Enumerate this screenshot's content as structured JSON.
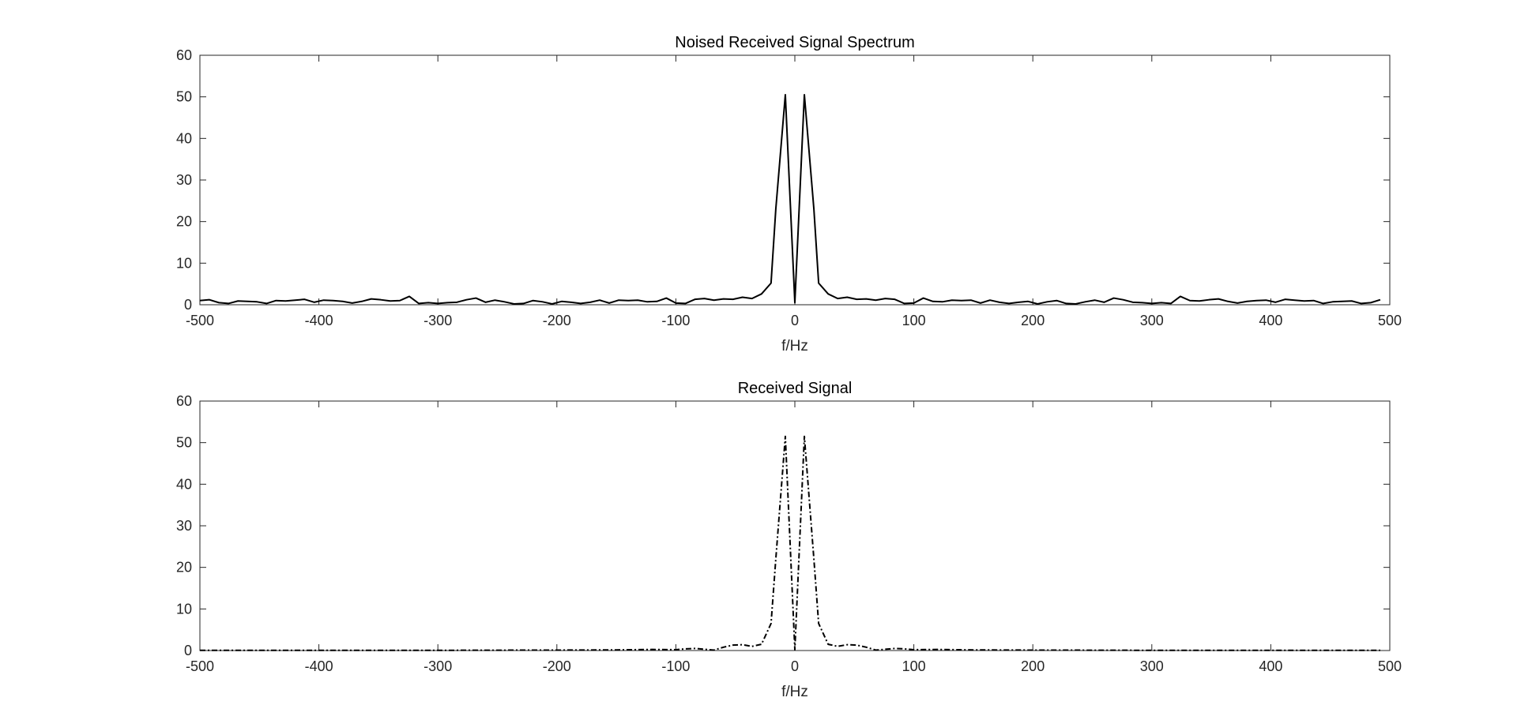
{
  "figure": {
    "background": "#ffffff",
    "axes_color": "#262626",
    "line_color": "#000000"
  },
  "chart_data": [
    {
      "type": "line",
      "title": "Noised Received Signal Spectrum",
      "xlabel": "f/Hz",
      "ylabel": "",
      "xlim": [
        -500,
        500
      ],
      "ylim": [
        0,
        60
      ],
      "xticks": [
        -500,
        -400,
        -300,
        -200,
        -100,
        0,
        100,
        200,
        300,
        400,
        500
      ],
      "yticks": [
        0,
        10,
        20,
        30,
        40,
        50,
        60
      ],
      "xtick_labels": [
        "-500",
        "-400",
        "-300",
        "-200",
        "-100",
        "0",
        "100",
        "200",
        "300",
        "400",
        "500"
      ],
      "ytick_labels": [
        "0",
        "10",
        "20",
        "30",
        "40",
        "50",
        "60"
      ],
      "grid": false,
      "series": [
        {
          "line_style": "solid",
          "x": [
            -500,
            -492,
            -484,
            -476,
            -468,
            -460,
            -452,
            -444,
            -436,
            -428,
            -420,
            -412,
            -404,
            -396,
            -388,
            -380,
            -372,
            -364,
            -356,
            -348,
            -340,
            -332,
            -324,
            -316,
            -308,
            -300,
            -292,
            -284,
            -276,
            -268,
            -260,
            -252,
            -244,
            -236,
            -228,
            -220,
            -212,
            -204,
            -196,
            -188,
            -180,
            -172,
            -164,
            -156,
            -148,
            -140,
            -132,
            -124,
            -116,
            -108,
            -100,
            -92,
            -84,
            -76,
            -68,
            -60,
            -52,
            -44,
            -36,
            -28,
            -20,
            -16,
            -8,
            0,
            8,
            16,
            20,
            28,
            36,
            44,
            52,
            60,
            68,
            76,
            84,
            92,
            100,
            108,
            116,
            124,
            132,
            140,
            148,
            156,
            164,
            172,
            180,
            188,
            196,
            204,
            212,
            220,
            228,
            236,
            244,
            252,
            260,
            268,
            276,
            284,
            292,
            300,
            308,
            316,
            324,
            332,
            340,
            348,
            356,
            364,
            372,
            380,
            388,
            396,
            404,
            412,
            420,
            428,
            436,
            444,
            452,
            460,
            468,
            476,
            484,
            492
          ],
          "y": [
            1.0,
            1.2,
            0.5,
            0.3,
            0.9,
            0.8,
            0.7,
            0.3,
            1.0,
            0.9,
            1.1,
            1.3,
            0.6,
            1.1,
            1.0,
            0.8,
            0.4,
            0.8,
            1.4,
            1.2,
            0.9,
            1.0,
            2.0,
            0.3,
            0.5,
            0.3,
            0.5,
            0.6,
            1.2,
            1.6,
            0.6,
            1.1,
            0.7,
            0.2,
            0.3,
            1.0,
            0.7,
            0.2,
            0.8,
            0.6,
            0.3,
            0.6,
            1.1,
            0.4,
            1.1,
            1.0,
            1.1,
            0.7,
            0.8,
            1.6,
            0.4,
            0.3,
            1.3,
            1.5,
            1.1,
            1.4,
            1.3,
            1.8,
            1.5,
            2.6,
            5.2,
            23.0,
            50.5,
            0.5,
            50.5,
            23.0,
            5.2,
            2.6,
            1.5,
            1.8,
            1.3,
            1.4,
            1.1,
            1.5,
            1.3,
            0.3,
            0.4,
            1.6,
            0.8,
            0.7,
            1.1,
            1.0,
            1.1,
            0.4,
            1.1,
            0.6,
            0.3,
            0.6,
            0.8,
            0.2,
            0.7,
            1.0,
            0.3,
            0.2,
            0.7,
            1.1,
            0.6,
            1.6,
            1.2,
            0.6,
            0.5,
            0.3,
            0.5,
            0.3,
            2.0,
            1.0,
            0.9,
            1.2,
            1.4,
            0.8,
            0.4,
            0.8,
            1.0,
            1.1,
            0.6,
            1.3,
            1.1,
            0.9,
            1.0,
            0.3,
            0.7,
            0.8,
            0.9,
            0.3,
            0.5,
            1.2
          ]
        }
      ]
    },
    {
      "type": "line",
      "title": "Received Signal",
      "xlabel": "f/Hz",
      "ylabel": "",
      "xlim": [
        -500,
        500
      ],
      "ylim": [
        0,
        60
      ],
      "xticks": [
        -500,
        -400,
        -300,
        -200,
        -100,
        0,
        100,
        200,
        300,
        400,
        500
      ],
      "yticks": [
        0,
        10,
        20,
        30,
        40,
        50,
        60
      ],
      "xtick_labels": [
        "-500",
        "-400",
        "-300",
        "-200",
        "-100",
        "0",
        "100",
        "200",
        "300",
        "400",
        "500"
      ],
      "ytick_labels": [
        "0",
        "10",
        "20",
        "30",
        "40",
        "50",
        "60"
      ],
      "grid": false,
      "series": [
        {
          "line_style": "dash-dot",
          "x": [
            -500,
            -450,
            -400,
            -350,
            -300,
            -250,
            -200,
            -150,
            -120,
            -100,
            -92,
            -84,
            -76,
            -68,
            -60,
            -52,
            -44,
            -36,
            -28,
            -20,
            -16,
            -8,
            0,
            8,
            16,
            20,
            28,
            36,
            44,
            52,
            60,
            68,
            76,
            84,
            92,
            100,
            120,
            150,
            200,
            250,
            300,
            350,
            400,
            450,
            492
          ],
          "y": [
            0.05,
            0.05,
            0.05,
            0.05,
            0.05,
            0.08,
            0.1,
            0.15,
            0.25,
            0.2,
            0.4,
            0.5,
            0.3,
            0.1,
            0.8,
            1.3,
            1.4,
            1.0,
            1.5,
            6.5,
            22.0,
            51.5,
            0.2,
            51.5,
            22.0,
            6.5,
            1.5,
            1.0,
            1.4,
            1.3,
            0.8,
            0.1,
            0.3,
            0.5,
            0.4,
            0.2,
            0.25,
            0.15,
            0.1,
            0.08,
            0.05,
            0.05,
            0.05,
            0.05,
            0.05
          ]
        }
      ]
    }
  ]
}
